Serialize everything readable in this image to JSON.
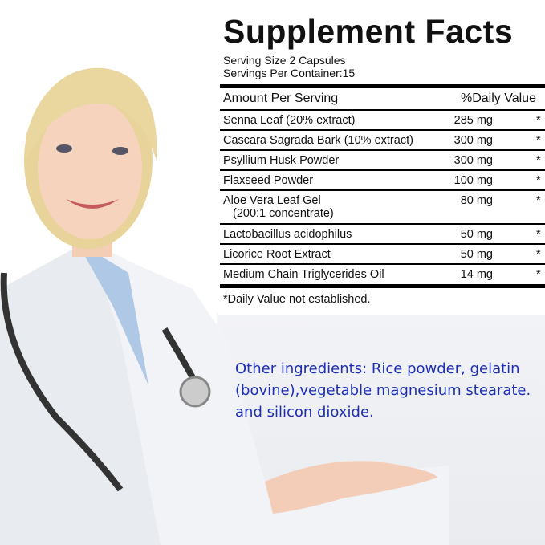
{
  "label": {
    "title": "Supplement Facts",
    "serving_size": "Serving Size 2 Capsules",
    "servings_per_container": "Servings Per Container:15",
    "header_amount": "Amount Per Serving",
    "header_dv": "%Daily Value",
    "rows": [
      {
        "name": "Senna Leaf (20% extract)",
        "amount": "285 mg",
        "dv": "*"
      },
      {
        "name": "Cascara Sagrada Bark (10% extract)",
        "amount": "300 mg",
        "dv": "*"
      },
      {
        "name": "Psyllium Husk Powder",
        "amount": "300 mg",
        "dv": "*"
      },
      {
        "name": "Flaxseed Powder",
        "amount": "100 mg",
        "dv": "*"
      },
      {
        "name": "Aloe Vera Leaf Gel",
        "name2": "(200:1 concentrate)",
        "amount": "80 mg",
        "dv": "*"
      },
      {
        "name": "Lactobacillus acidophilus",
        "amount": "50 mg",
        "dv": "*"
      },
      {
        "name": "Licorice Root Extract",
        "amount": "50 mg",
        "dv": "*"
      },
      {
        "name": "Medium Chain Triglycerides Oil",
        "amount": "14 mg",
        "dv": "*"
      }
    ],
    "footnote": "*Daily Value not established."
  },
  "other_ingredients": [
    "Other ingredients: Rice powder, gelatin",
    "(bovine),vegetable magnesium stearate.",
    "and silicon dioxide."
  ],
  "colors": {
    "other_text": "#1f2fb3"
  }
}
